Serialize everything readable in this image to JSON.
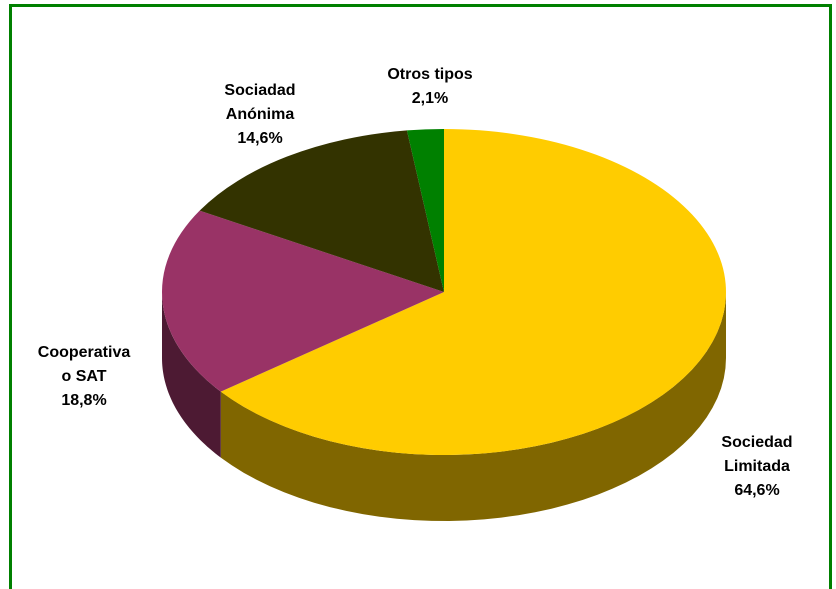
{
  "chart_data": {
    "type": "pie",
    "title": "",
    "slices": [
      {
        "name": "Sociedad Limitada",
        "label_lines": [
          "Sociedad",
          "Limitada"
        ],
        "value_label": "64,6%",
        "value": 64.6,
        "color": "#FFCC00",
        "side_color": "#806600"
      },
      {
        "name": "Cooperativa o SAT",
        "label_lines": [
          "Cooperativa",
          "o SAT"
        ],
        "value_label": "18,8%",
        "value": 18.8,
        "color": "#993366",
        "side_color": "#4D1A33"
      },
      {
        "name": "Sociadad Anónima",
        "label_lines": [
          "Sociadad",
          "Anónima"
        ],
        "value_label": "14,6%",
        "value": 14.6,
        "color": "#333300",
        "side_color": "#1A1A00"
      },
      {
        "name": "Otros tipos",
        "label_lines": [
          "Otros tipos"
        ],
        "value_label": "2,1%",
        "value": 2.1,
        "color": "#008000",
        "side_color": "#004000"
      }
    ],
    "legend": "none",
    "style": "3d"
  },
  "frame": {
    "border_color": "#008000"
  }
}
